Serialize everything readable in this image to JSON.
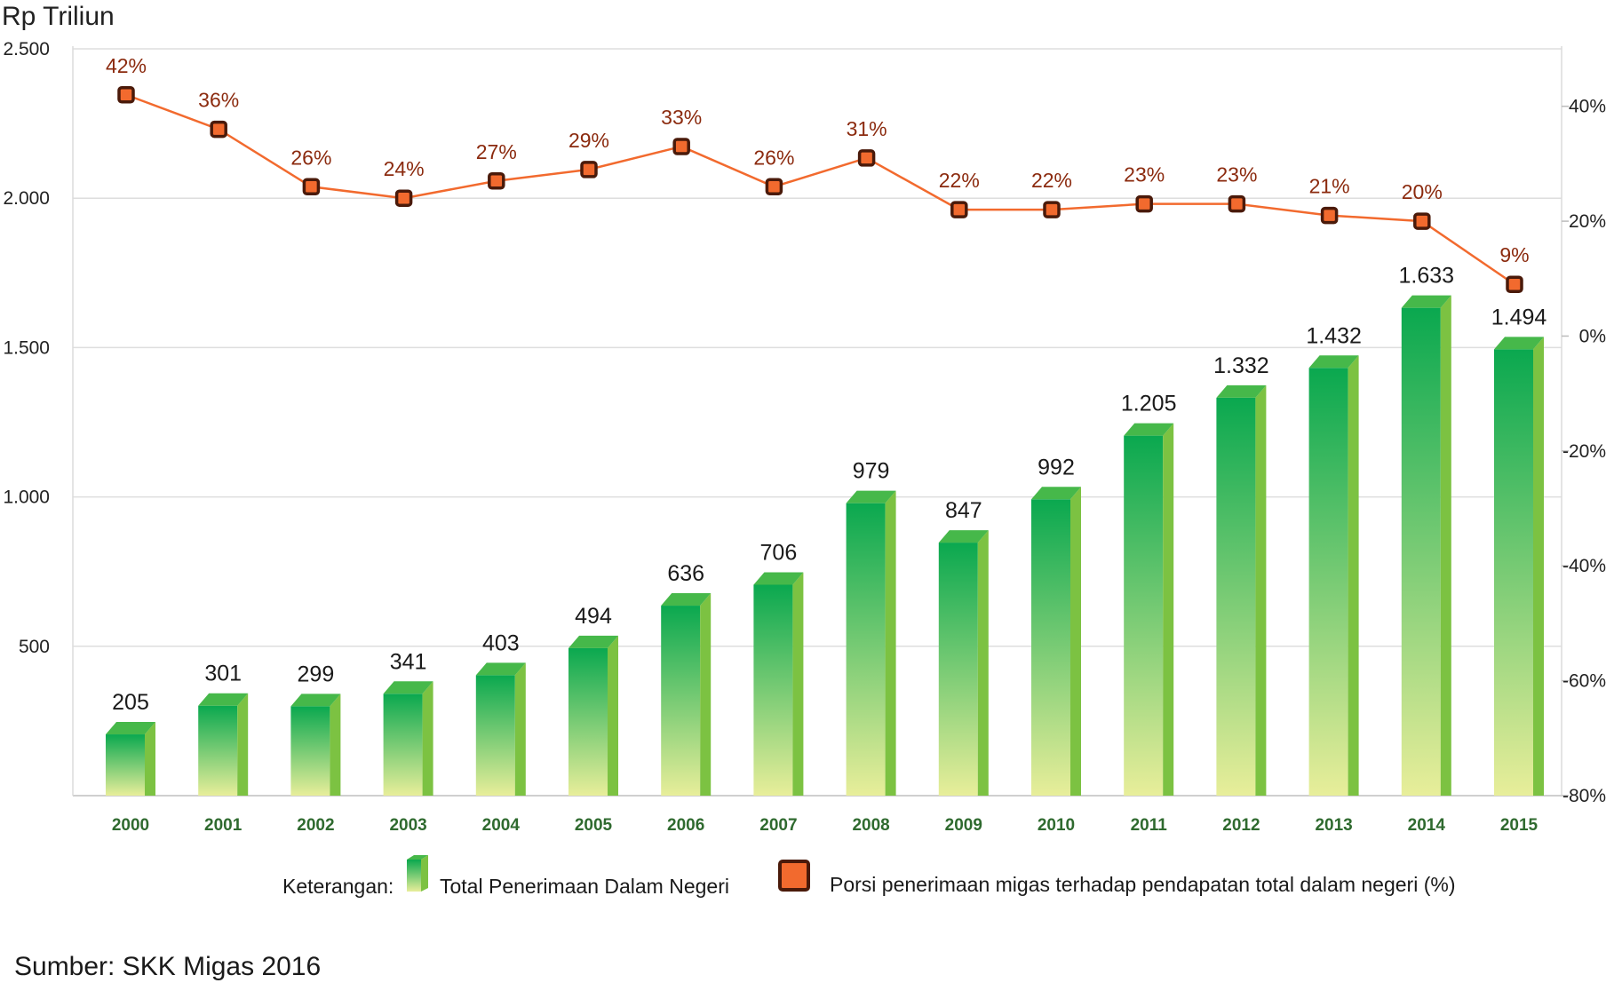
{
  "chart_data": {
    "type": "bar",
    "ylabel": "Rp Triliun",
    "ylim": [
      0,
      2500
    ],
    "y_ticks": [
      "500",
      "1.000",
      "1.500",
      "2.000",
      "2.500"
    ],
    "y_tick_values": [
      500,
      1000,
      1500,
      2000,
      2500
    ],
    "y2lim": [
      -80,
      50
    ],
    "y2_ticks": [
      "40%",
      "20%",
      "0%",
      "-20%",
      "-40%",
      "-60%",
      "-80%"
    ],
    "y2_tick_values": [
      40,
      20,
      0,
      -20,
      -40,
      -60,
      -80
    ],
    "categories": [
      "2000",
      "2001",
      "2002",
      "2003",
      "2004",
      "2005",
      "2006",
      "2007",
      "2008",
      "2009",
      "2010",
      "2011",
      "2012",
      "2013",
      "2014",
      "2015"
    ],
    "series": [
      {
        "name": "Total Penerimaan Dalam Negeri",
        "type": "bar",
        "values": [
          205,
          301,
          299,
          341,
          403,
          494,
          636,
          706,
          979,
          847,
          992,
          1205,
          1332,
          1432,
          1633,
          1494
        ],
        "labels": [
          "205",
          "301",
          "299",
          "341",
          "403",
          "494",
          "636",
          "706",
          "979",
          "847",
          "992",
          "1.205",
          "1.332",
          "1.432",
          "1.633",
          "1.494"
        ]
      },
      {
        "name": "Porsi penerimaan migas terhadap pendapatan total dalam negeri (%)",
        "type": "line",
        "axis": "right",
        "values": [
          42,
          36,
          26,
          24,
          27,
          29,
          33,
          26,
          31,
          22,
          22,
          23,
          23,
          21,
          20,
          9
        ],
        "labels": [
          "42%",
          "36%",
          "26%",
          "24%",
          "27%",
          "29%",
          "33%",
          "26%",
          "31%",
          "22%",
          "22%",
          "23%",
          "23%",
          "21%",
          "20%",
          "9%"
        ]
      }
    ],
    "grid": true,
    "legend_position": "bottom"
  },
  "legend": {
    "title": "Keterangan:",
    "bar_label": "Total Penerimaan Dalam Negeri",
    "line_label": "Porsi penerimaan migas terhadap pendapatan total dalam negeri (%)"
  },
  "source": "Sumber: SKK Migas 2016",
  "colors": {
    "bar_top": "#0aa84f",
    "bar_bottom": "#e8ee9a",
    "bar_side": "#7cc242",
    "bar_cap": "#46b84a",
    "line": "#f26a2e",
    "marker_fill": "#f26a2e",
    "marker_border": "#4a1a0a",
    "pct_text": "#8b2a0e",
    "xtick_text": "#2f6a2f"
  }
}
